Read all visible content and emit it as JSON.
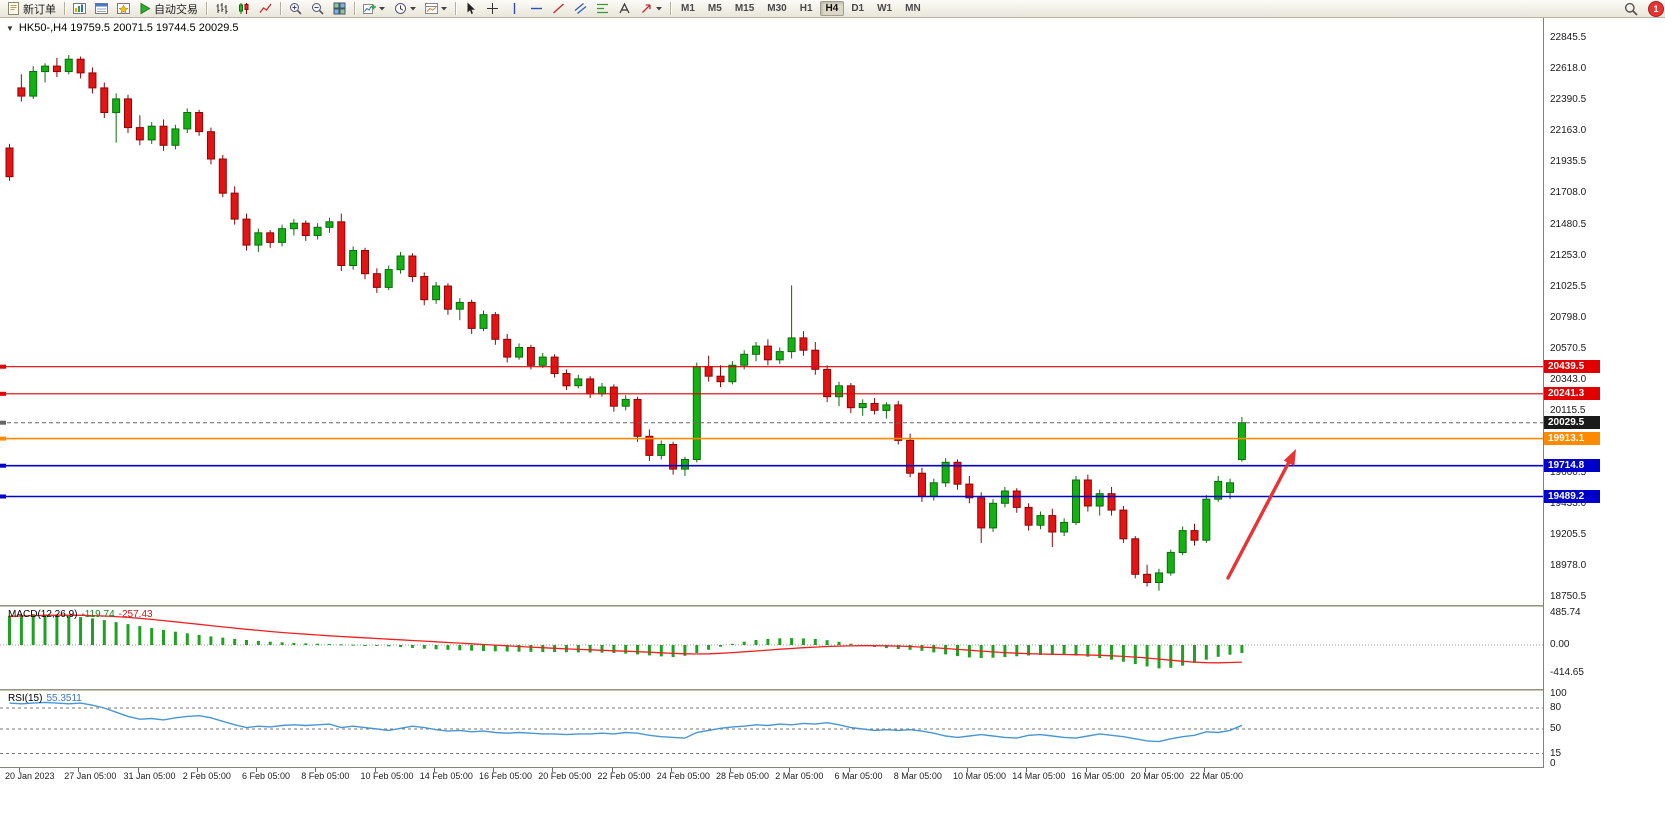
{
  "toolbar": {
    "new_order_label": "新订单",
    "autotrading_label": "自动交易",
    "timeframes": [
      "M1",
      "M5",
      "M15",
      "M30",
      "H1",
      "H4",
      "D1",
      "W1",
      "MN"
    ],
    "active_timeframe": "H4",
    "notification_count": "1"
  },
  "icons": {
    "new_order": "document-sheet",
    "market_watch": "column-chart-window",
    "data_window": "list-window",
    "navigator": "compass-window",
    "autotrading": "green-play-triangle",
    "chart_bars": "ohlc-bars",
    "chart_candles": "candlesticks",
    "chart_line": "zigzag-line",
    "zoom_in": "magnifier-plus",
    "zoom_out": "magnifier-minus",
    "tile_windows": "grid-2x2",
    "indicators": "plus-on-chart",
    "periods": "clock",
    "templates": "framed-chart",
    "cursor": "arrow-pointer",
    "crosshair": "cross",
    "vertical_line": "vertical-bar",
    "horizontal_line": "horizontal-bar",
    "trendline": "diagonal-line",
    "channel": "double-diagonal",
    "fibonacci": "stacked-lines",
    "text": "letter-A-outline",
    "arrows": "up-right-arrow",
    "dropdown_caret": "small-down-triangle",
    "search": "magnifier",
    "notification": "red-circle-count"
  },
  "chart": {
    "symbol_title": "HK50-,H4  19759.5 20071.5 19744.5 20029.5",
    "macd_name": "MACD(12,26,9)",
    "macd_main_value": "-119.74",
    "macd_signal_value": "-257.43",
    "rsi_name": "RSI(15)",
    "rsi_value": "55.3511",
    "price_axis": [
      "22845.5",
      "22618.0",
      "22390.5",
      "22163.0",
      "21935.5",
      "21708.0",
      "21480.5",
      "21253.0",
      "21025.5",
      "20798.0",
      "20570.5",
      "20343.0",
      "20115.5",
      "19888.0",
      "19660.5",
      "19433.0",
      "19205.5",
      "18978.0",
      "18750.5"
    ],
    "macd_axis": [
      "485.74",
      "0.00",
      "-414.65"
    ],
    "rsi_axis": [
      "100",
      "80",
      "50",
      "15",
      "0"
    ],
    "time_axis": [
      "20 Jan 2023",
      "27 Jan 05:00",
      "31 Jan 05:00",
      "2 Feb 05:00",
      "6 Feb 05:00",
      "8 Feb 05:00",
      "10 Feb 05:00",
      "14 Feb 05:00",
      "16 Feb 05:00",
      "20 Feb 05:00",
      "22 Feb 05:00",
      "24 Feb 05:00",
      "28 Feb 05:00",
      "2 Mar 05:00",
      "6 Mar 05:00",
      "8 Mar 05:00",
      "10 Mar 05:00",
      "14 Mar 05:00",
      "16 Mar 05:00",
      "20 Mar 05:00",
      "22 Mar 05:00"
    ],
    "price_tags": [
      {
        "text": "20439.5",
        "price": 20439.5,
        "color": "#e00000"
      },
      {
        "text": "20241.3",
        "price": 20241.3,
        "color": "#e00000"
      },
      {
        "text": "20029.5",
        "price": 20029.5,
        "color": "#1a1a1a"
      },
      {
        "text": "19913.1",
        "price": 19913.1,
        "color": "#ff8a00"
      },
      {
        "text": "19714.8",
        "price": 19714.8,
        "color": "#0000cd"
      },
      {
        "text": "19489.2",
        "price": 19489.2,
        "color": "#0000cd"
      }
    ],
    "hlines": [
      {
        "price": 20439.5,
        "color": "#e00000",
        "width": 1.2
      },
      {
        "price": 20241.3,
        "color": "#e00000",
        "width": 1.2
      },
      {
        "price": 20029.5,
        "color": "#666666",
        "width": 1,
        "dash": "4 3"
      },
      {
        "price": 19913.1,
        "color": "#ff8a00",
        "width": 1.6
      },
      {
        "price": 19714.8,
        "color": "#0000cd",
        "width": 1.6
      },
      {
        "price": 19489.2,
        "color": "#0000cd",
        "width": 1.6
      }
    ]
  },
  "colors": {
    "bull_fill": "#14b014",
    "bull_stroke": "#0a6d0a",
    "bear_fill": "#e31414",
    "bear_stroke": "#8d0707",
    "macd_histogram": "#21a121",
    "macd_signal": "#f02020",
    "rsi_line": "#4a96d2",
    "arrow": "#e53535"
  },
  "chart_data": {
    "type": "candlestick",
    "symbol": "HK50-",
    "timeframe": "H4",
    "last_ohlc": {
      "open": 19759.5,
      "high": 20071.5,
      "low": 19744.5,
      "close": 20029.5
    },
    "price_axis_top": 22845.5,
    "price_axis_step": 227.5,
    "ohlc": [
      [
        22040,
        22070,
        21800,
        21830
      ],
      [
        22480,
        22580,
        22380,
        22420
      ],
      [
        22420,
        22640,
        22400,
        22600
      ],
      [
        22600,
        22660,
        22520,
        22640
      ],
      [
        22640,
        22700,
        22560,
        22600
      ],
      [
        22600,
        22720,
        22580,
        22690
      ],
      [
        22690,
        22710,
        22550,
        22590
      ],
      [
        22590,
        22630,
        22440,
        22480
      ],
      [
        22480,
        22520,
        22260,
        22300
      ],
      [
        22300,
        22440,
        22080,
        22400
      ],
      [
        22400,
        22430,
        22150,
        22190
      ],
      [
        22190,
        22280,
        22060,
        22100
      ],
      [
        22100,
        22230,
        22070,
        22200
      ],
      [
        22200,
        22250,
        22020,
        22060
      ],
      [
        22060,
        22210,
        22030,
        22180
      ],
      [
        22180,
        22330,
        22150,
        22300
      ],
      [
        22300,
        22320,
        22130,
        22160
      ],
      [
        22160,
        22190,
        21920,
        21960
      ],
      [
        21960,
        21990,
        21680,
        21710
      ],
      [
        21710,
        21760,
        21480,
        21520
      ],
      [
        21520,
        21560,
        21290,
        21330
      ],
      [
        21330,
        21450,
        21280,
        21420
      ],
      [
        21420,
        21440,
        21310,
        21350
      ],
      [
        21350,
        21480,
        21320,
        21450
      ],
      [
        21450,
        21520,
        21400,
        21490
      ],
      [
        21490,
        21510,
        21360,
        21400
      ],
      [
        21400,
        21490,
        21370,
        21460
      ],
      [
        21460,
        21530,
        21420,
        21500
      ],
      [
        21500,
        21560,
        21140,
        21180
      ],
      [
        21180,
        21320,
        21150,
        21290
      ],
      [
        21290,
        21310,
        21080,
        21120
      ],
      [
        21120,
        21160,
        20980,
        21020
      ],
      [
        21020,
        21180,
        21000,
        21150
      ],
      [
        21150,
        21280,
        21120,
        21250
      ],
      [
        21250,
        21270,
        21060,
        21100
      ],
      [
        21100,
        21130,
        20890,
        20930
      ],
      [
        20930,
        21060,
        20900,
        21030
      ],
      [
        21030,
        21050,
        20820,
        20860
      ],
      [
        20860,
        20940,
        20780,
        20910
      ],
      [
        20910,
        20930,
        20680,
        20720
      ],
      [
        20720,
        20850,
        20700,
        20820
      ],
      [
        20820,
        20840,
        20600,
        20640
      ],
      [
        20640,
        20680,
        20470,
        20510
      ],
      [
        20510,
        20610,
        20490,
        20580
      ],
      [
        20580,
        20600,
        20420,
        20450
      ],
      [
        20450,
        20540,
        20430,
        20510
      ],
      [
        20510,
        20530,
        20360,
        20390
      ],
      [
        20390,
        20420,
        20270,
        20300
      ],
      [
        20300,
        20380,
        20280,
        20350
      ],
      [
        20350,
        20370,
        20210,
        20240
      ],
      [
        20240,
        20320,
        20220,
        20290
      ],
      [
        20290,
        20310,
        20110,
        20150
      ],
      [
        20150,
        20230,
        20120,
        20200
      ],
      [
        20200,
        20220,
        19890,
        19930
      ],
      [
        19930,
        19980,
        19750,
        19790
      ],
      [
        19790,
        19900,
        19760,
        19870
      ],
      [
        19870,
        19890,
        19650,
        19690
      ],
      [
        19690,
        19780,
        19640,
        19760
      ],
      [
        19760,
        20470,
        19740,
        20440
      ],
      [
        20440,
        20520,
        20330,
        20370
      ],
      [
        20370,
        20450,
        20290,
        20330
      ],
      [
        20330,
        20480,
        20310,
        20450
      ],
      [
        20450,
        20560,
        20420,
        20530
      ],
      [
        20530,
        20620,
        20480,
        20590
      ],
      [
        20590,
        20640,
        20450,
        20490
      ],
      [
        20490,
        20580,
        20460,
        20550
      ],
      [
        20550,
        21035,
        20500,
        20650
      ],
      [
        20650,
        20700,
        20520,
        20560
      ],
      [
        20560,
        20620,
        20380,
        20420
      ],
      [
        20420,
        20450,
        20180,
        20220
      ],
      [
        20220,
        20330,
        20150,
        20300
      ],
      [
        20300,
        20320,
        20100,
        20140
      ],
      [
        20140,
        20200,
        20080,
        20170
      ],
      [
        20170,
        20210,
        20090,
        20120
      ],
      [
        20120,
        20180,
        20060,
        20160
      ],
      [
        20160,
        20190,
        19870,
        19900
      ],
      [
        19900,
        19950,
        19630,
        19660
      ],
      [
        19660,
        19700,
        19450,
        19490
      ],
      [
        19490,
        19620,
        19460,
        19590
      ],
      [
        19590,
        19770,
        19560,
        19740
      ],
      [
        19740,
        19760,
        19540,
        19580
      ],
      [
        19580,
        19640,
        19440,
        19480
      ],
      [
        19480,
        19520,
        19150,
        19260
      ],
      [
        19260,
        19470,
        19230,
        19440
      ],
      [
        19440,
        19560,
        19410,
        19530
      ],
      [
        19530,
        19550,
        19370,
        19410
      ],
      [
        19410,
        19440,
        19240,
        19280
      ],
      [
        19280,
        19380,
        19250,
        19350
      ],
      [
        19350,
        19400,
        19120,
        19230
      ],
      [
        19230,
        19330,
        19200,
        19300
      ],
      [
        19300,
        19640,
        19280,
        19610
      ],
      [
        19610,
        19650,
        19380,
        19420
      ],
      [
        19420,
        19540,
        19350,
        19510
      ],
      [
        19510,
        19560,
        19350,
        19390
      ],
      [
        19390,
        19420,
        19150,
        19180
      ],
      [
        19180,
        19200,
        18890,
        18920
      ],
      [
        18920,
        18990,
        18830,
        18860
      ],
      [
        18860,
        18960,
        18800,
        18930
      ],
      [
        18930,
        19100,
        18910,
        19080
      ],
      [
        19080,
        19270,
        19060,
        19240
      ],
      [
        19240,
        19290,
        19130,
        19170
      ],
      [
        19170,
        19500,
        19150,
        19470
      ],
      [
        19470,
        19640,
        19450,
        19600
      ],
      [
        19520,
        19620,
        19470,
        19590
      ],
      [
        19759.5,
        20071.5,
        19744.5,
        20029.5
      ]
    ],
    "indicators": {
      "macd": {
        "name": "MACD(12,26,9)",
        "main_last": -119.74,
        "signal_last": -257.43,
        "axis": [
          485.74,
          0,
          -414.65
        ],
        "histogram": [
          440,
          455,
          465,
          460,
          450,
          435,
          420,
          400,
          375,
          345,
          315,
          285,
          255,
          228,
          200,
          176,
          152,
          130,
          110,
          92,
          76,
          62,
          50,
          40,
          32,
          26,
          20,
          15,
          10,
          5,
          -2,
          -10,
          -20,
          -32,
          -44,
          -56,
          -65,
          -73,
          -80,
          -86,
          -91,
          -95,
          -98,
          -101,
          -103,
          -105,
          -107,
          -109,
          -111,
          -113,
          -116,
          -121,
          -129,
          -141,
          -156,
          -171,
          -181,
          -163,
          -120,
          -72,
          -25,
          18,
          50,
          75,
          92,
          101,
          104,
          100,
          90,
          72,
          48,
          20,
          -6,
          -28,
          -46,
          -60,
          -72,
          -88,
          -112,
          -142,
          -167,
          -186,
          -196,
          -192,
          -182,
          -170,
          -158,
          -150,
          -146,
          -150,
          -160,
          -176,
          -196,
          -222,
          -252,
          -287,
          -322,
          -352,
          -344,
          -312,
          -268,
          -222,
          -178,
          -146,
          -119.74
        ],
        "signal": [
          430,
          437,
          443,
          447,
          449,
          449,
          447,
          443,
          437,
          428,
          416,
          402,
          386,
          368,
          349,
          330,
          311,
          292,
          273,
          255,
          237,
          220,
          204,
          189,
          175,
          162,
          150,
          139,
          128,
          118,
          108,
          98,
          88,
          78,
          68,
          58,
          48,
          38,
          28,
          18,
          8,
          -2,
          -12,
          -22,
          -32,
          -41,
          -50,
          -58,
          -66,
          -73,
          -80,
          -87,
          -94,
          -101,
          -109,
          -118,
          -127,
          -133,
          -135,
          -132,
          -125,
          -115,
          -103,
          -90,
          -77,
          -64,
          -52,
          -41,
          -31,
          -23,
          -17,
          -13,
          -11,
          -11,
          -13,
          -17,
          -23,
          -31,
          -41,
          -53,
          -66,
          -79,
          -92,
          -104,
          -115,
          -124,
          -131,
          -136,
          -140,
          -143,
          -146,
          -150,
          -155,
          -162,
          -171,
          -182,
          -196,
          -212,
          -229,
          -245,
          -258,
          -266,
          -268,
          -264,
          -257.43
        ]
      },
      "rsi": {
        "name": "RSI(15)",
        "last": 55.3511,
        "levels": [
          80,
          50,
          15
        ],
        "axis": [
          100,
          80,
          50,
          15,
          0
        ],
        "values": [
          87,
          86,
          87,
          88,
          87,
          86,
          87,
          84,
          80,
          74,
          68,
          64,
          65,
          63,
          66,
          68,
          69,
          66,
          61,
          56,
          52,
          54,
          53,
          55,
          56,
          55,
          56,
          57,
          52,
          54,
          52,
          50,
          48,
          51,
          54,
          52,
          49,
          47,
          48,
          46,
          47,
          45,
          44,
          45,
          44,
          43,
          43,
          42,
          43,
          43,
          44,
          43,
          45,
          44,
          41,
          39,
          38,
          37,
          45,
          48,
          51,
          53,
          54,
          56,
          55,
          57,
          56,
          58,
          57,
          59,
          56,
          52,
          50,
          48,
          49,
          48,
          49,
          47,
          44,
          40,
          38,
          40,
          42,
          40,
          38,
          37,
          41,
          42,
          40,
          38,
          37,
          40,
          43,
          41,
          39,
          36,
          33,
          32,
          36,
          39,
          41,
          46,
          45,
          48,
          55.35
        ]
      }
    }
  }
}
